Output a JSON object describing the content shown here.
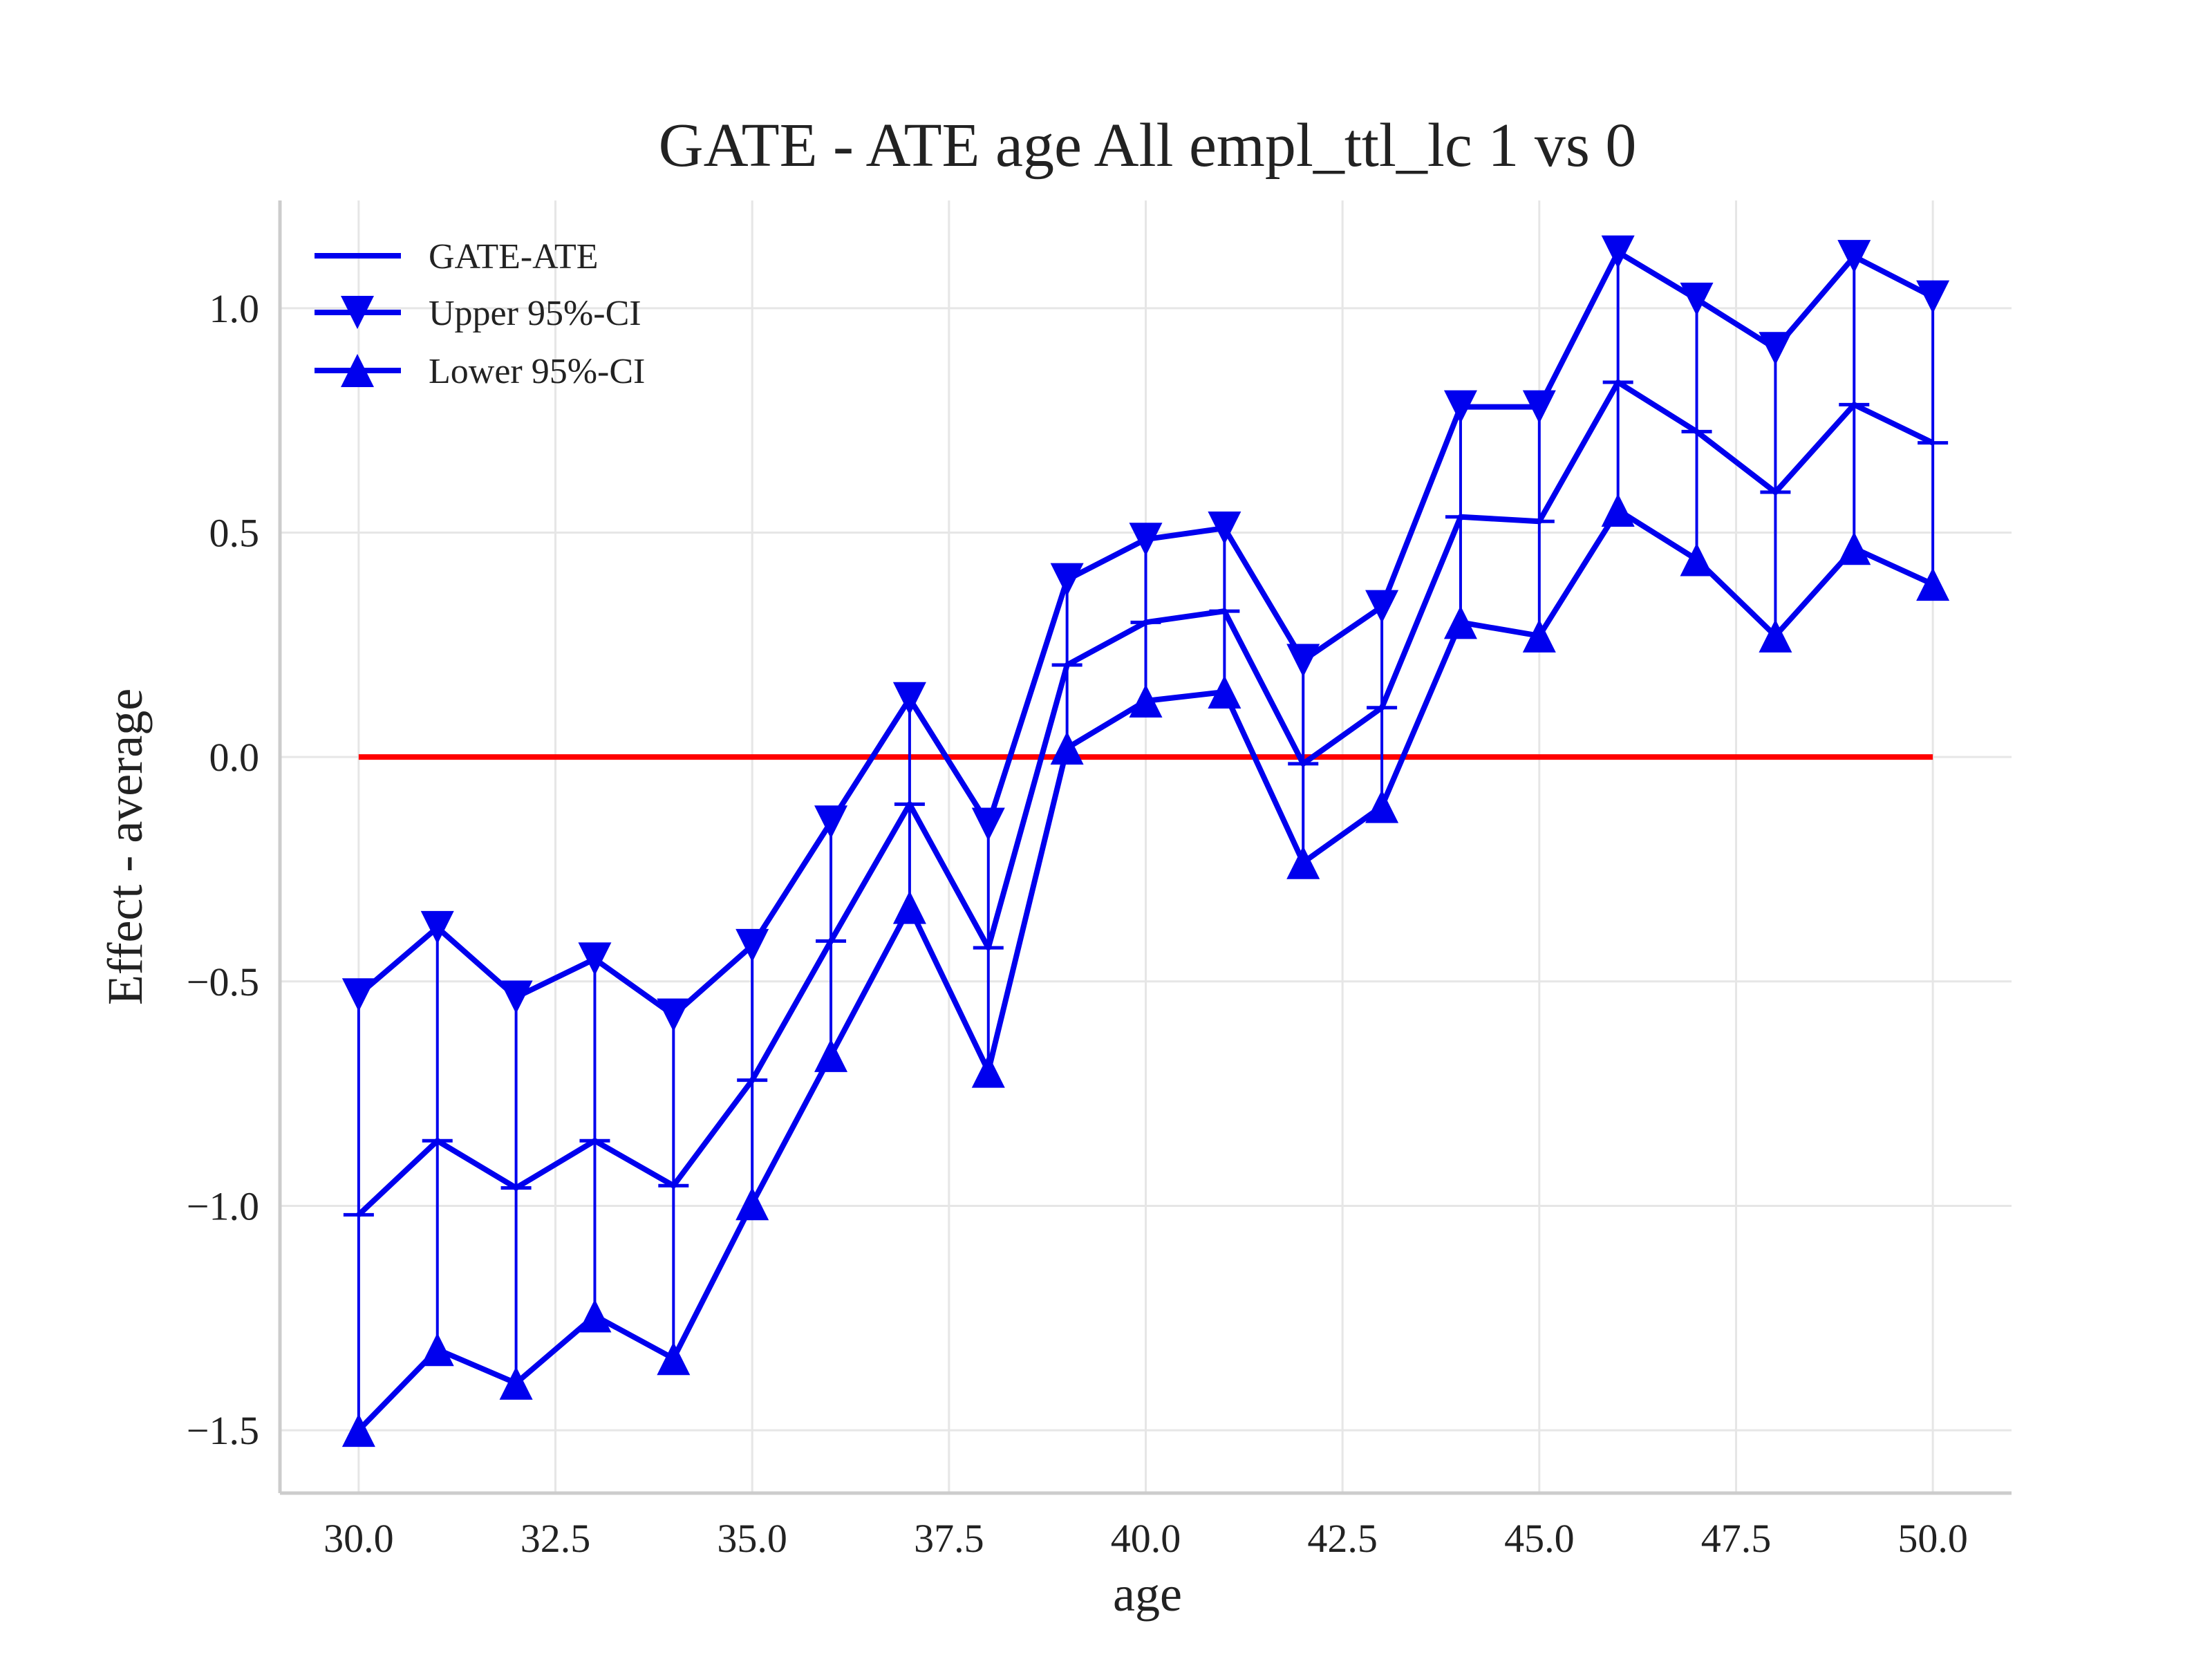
{
  "chart_data": {
    "type": "line",
    "title": "GATE - ATE age All empl_ttl_lc  1 vs 0",
    "xlabel": "age",
    "ylabel": "Effect - average",
    "xlim": [
      29.0,
      51.0
    ],
    "ylim": [
      -1.64,
      1.24
    ],
    "xticks": [
      30.0,
      32.5,
      35.0,
      37.5,
      40.0,
      42.5,
      45.0,
      47.5,
      50.0
    ],
    "xtick_labels": [
      "30.0",
      "32.5",
      "35.0",
      "37.5",
      "40.0",
      "42.5",
      "45.0",
      "47.5",
      "50.0"
    ],
    "yticks": [
      -1.5,
      -1.0,
      -0.5,
      0.0,
      0.5,
      1.0
    ],
    "ytick_labels": [
      "−1.5",
      "−1.0",
      "−0.5",
      "0.0",
      "0.5",
      "1.0"
    ],
    "grid": true,
    "legend_position": "top-left",
    "x": [
      30,
      31,
      32,
      33,
      34,
      35,
      36,
      37,
      38,
      39,
      40,
      41,
      42,
      43,
      44,
      45,
      46,
      47,
      48,
      49,
      50
    ],
    "series": [
      {
        "name": "GATE-ATE",
        "marker": "hline",
        "color": "#0000ee",
        "values": [
          -1.02,
          -0.855,
          -0.96,
          -0.855,
          -0.955,
          -0.72,
          -0.41,
          -0.105,
          -0.425,
          0.205,
          0.3,
          0.325,
          -0.015,
          0.11,
          0.535,
          0.525,
          0.835,
          0.725,
          0.59,
          0.785,
          0.7
        ]
      },
      {
        "name": "Upper 95%-CI",
        "marker": "triangle-down",
        "color": "#0000ee",
        "values": [
          -0.53,
          -0.38,
          -0.535,
          -0.45,
          -0.575,
          -0.42,
          -0.145,
          0.13,
          -0.15,
          0.395,
          0.485,
          0.51,
          0.215,
          0.335,
          0.78,
          0.78,
          1.125,
          1.02,
          0.91,
          1.115,
          1.025
        ]
      },
      {
        "name": "Lower 95%-CI",
        "marker": "triangle-up",
        "color": "#0000ee",
        "values": [
          -1.5,
          -1.32,
          -1.395,
          -1.245,
          -1.34,
          -0.995,
          -0.665,
          -0.335,
          -0.7,
          0.02,
          0.125,
          0.145,
          -0.235,
          -0.11,
          0.3,
          0.27,
          0.55,
          0.44,
          0.27,
          0.465,
          0.385
        ]
      }
    ],
    "reference_line": {
      "y": 0.0,
      "color": "#ff0000"
    }
  }
}
